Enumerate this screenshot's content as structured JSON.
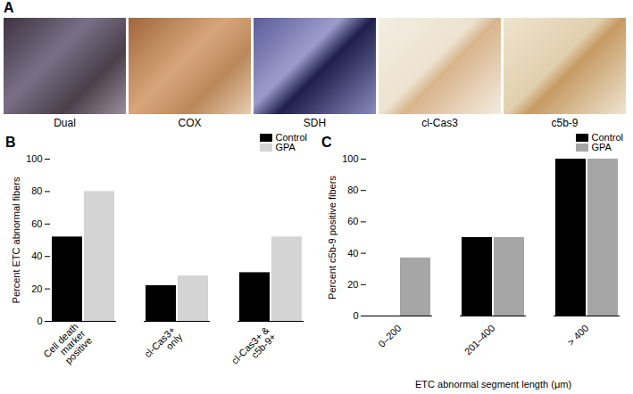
{
  "panel_a": {
    "panel_label": "A",
    "images": [
      "Dual",
      "COX",
      "SDH",
      "cl-Cas3",
      "c5b-9"
    ]
  },
  "chart_data": [
    {
      "type": "bar",
      "panel_label": "B",
      "categories": [
        "Cell death marker positive",
        "cl-Cas3+ only",
        "cl-Cas3+ & c5b-9+"
      ],
      "series": [
        {
          "name": "Control",
          "color": "#000000",
          "values": [
            52,
            22,
            30
          ]
        },
        {
          "name": "GPA",
          "color": "#d4d4d4",
          "values": [
            80,
            28,
            52
          ]
        }
      ],
      "y_label": "Percent ETC abnormal fibers",
      "ylim": [
        0,
        100
      ],
      "yticks": [
        0,
        20,
        40,
        60,
        80,
        100
      ],
      "legend": "top-right"
    },
    {
      "type": "bar",
      "panel_label": "C",
      "categories": [
        "0–200",
        "201–400",
        "> 400"
      ],
      "series": [
        {
          "name": "Control",
          "color": "#000000",
          "values": [
            0,
            50,
            100
          ]
        },
        {
          "name": "GPA",
          "color": "#a6a6a6",
          "values": [
            37,
            50,
            100
          ]
        }
      ],
      "x_label": "ETC abnormal segment length (μm)",
      "y_label": "Percent c5b-9 positive fibers",
      "ylim": [
        0,
        100
      ],
      "yticks": [
        0,
        20,
        40,
        60,
        80,
        100
      ],
      "legend": "top-right"
    }
  ]
}
